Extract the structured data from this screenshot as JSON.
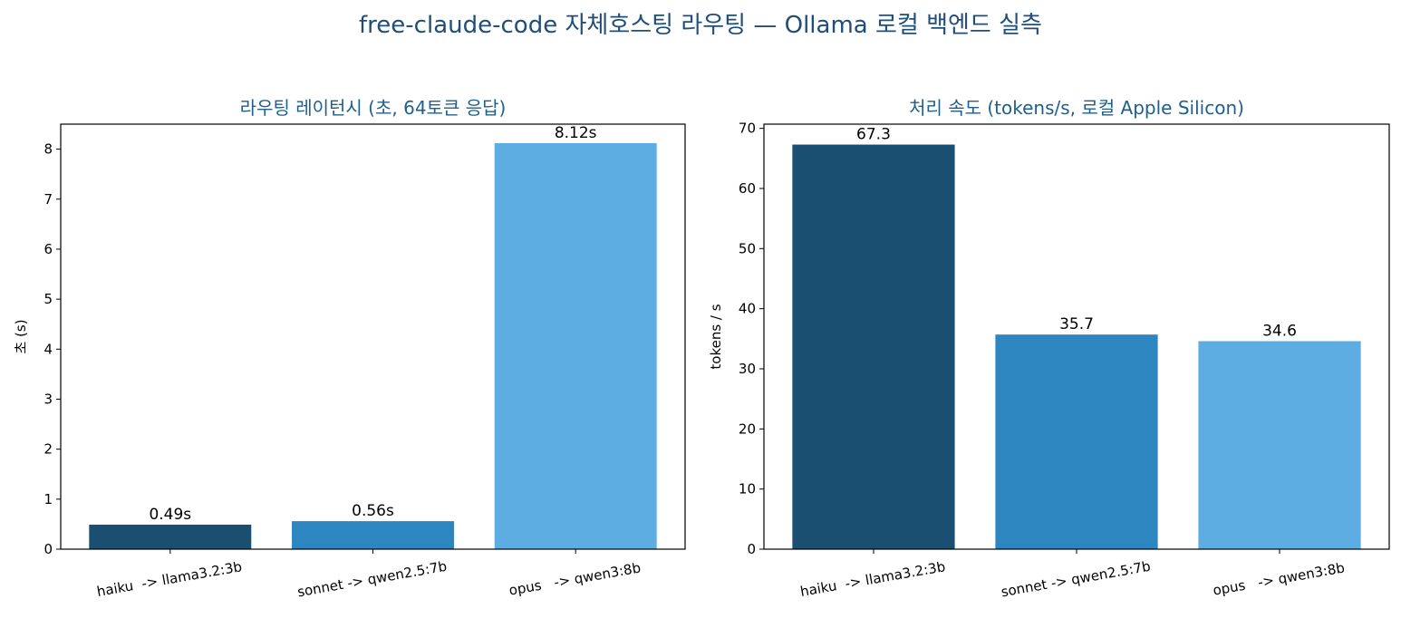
{
  "figure_title": "free-claude-code 자체호스팅 라우팅 — Ollama 로컬 백엔드 실측",
  "colors": [
    "#1b4f72",
    "#2e86c1",
    "#5dade2"
  ],
  "chart_data": [
    {
      "type": "bar",
      "title": "라우팅 레이턴시 (초, 64토큰 응답)",
      "xlabel": "",
      "ylabel": "초 (s)",
      "categories": [
        "haiku  -> llama3.2:3b",
        "sonnet -> qwen2.5:7b",
        "opus   -> qwen3:8b"
      ],
      "values": [
        0.49,
        0.56,
        8.12
      ],
      "value_labels": [
        "0.49s",
        "0.56s",
        "8.12s"
      ],
      "ylim": [
        0,
        8.5
      ],
      "yticks": [
        0,
        1,
        2,
        3,
        4,
        5,
        6,
        7,
        8
      ],
      "grid": false
    },
    {
      "type": "bar",
      "title": "처리 속도 (tokens/s, 로컬 Apple Silicon)",
      "xlabel": "",
      "ylabel": "tokens / s",
      "categories": [
        "haiku  -> llama3.2:3b",
        "sonnet -> qwen2.5:7b",
        "opus   -> qwen3:8b"
      ],
      "values": [
        67.3,
        35.7,
        34.6
      ],
      "value_labels": [
        "67.3",
        "35.7",
        "34.6"
      ],
      "ylim": [
        0,
        70.7
      ],
      "yticks": [
        0,
        10,
        20,
        30,
        40,
        50,
        60,
        70
      ],
      "grid": false
    }
  ]
}
